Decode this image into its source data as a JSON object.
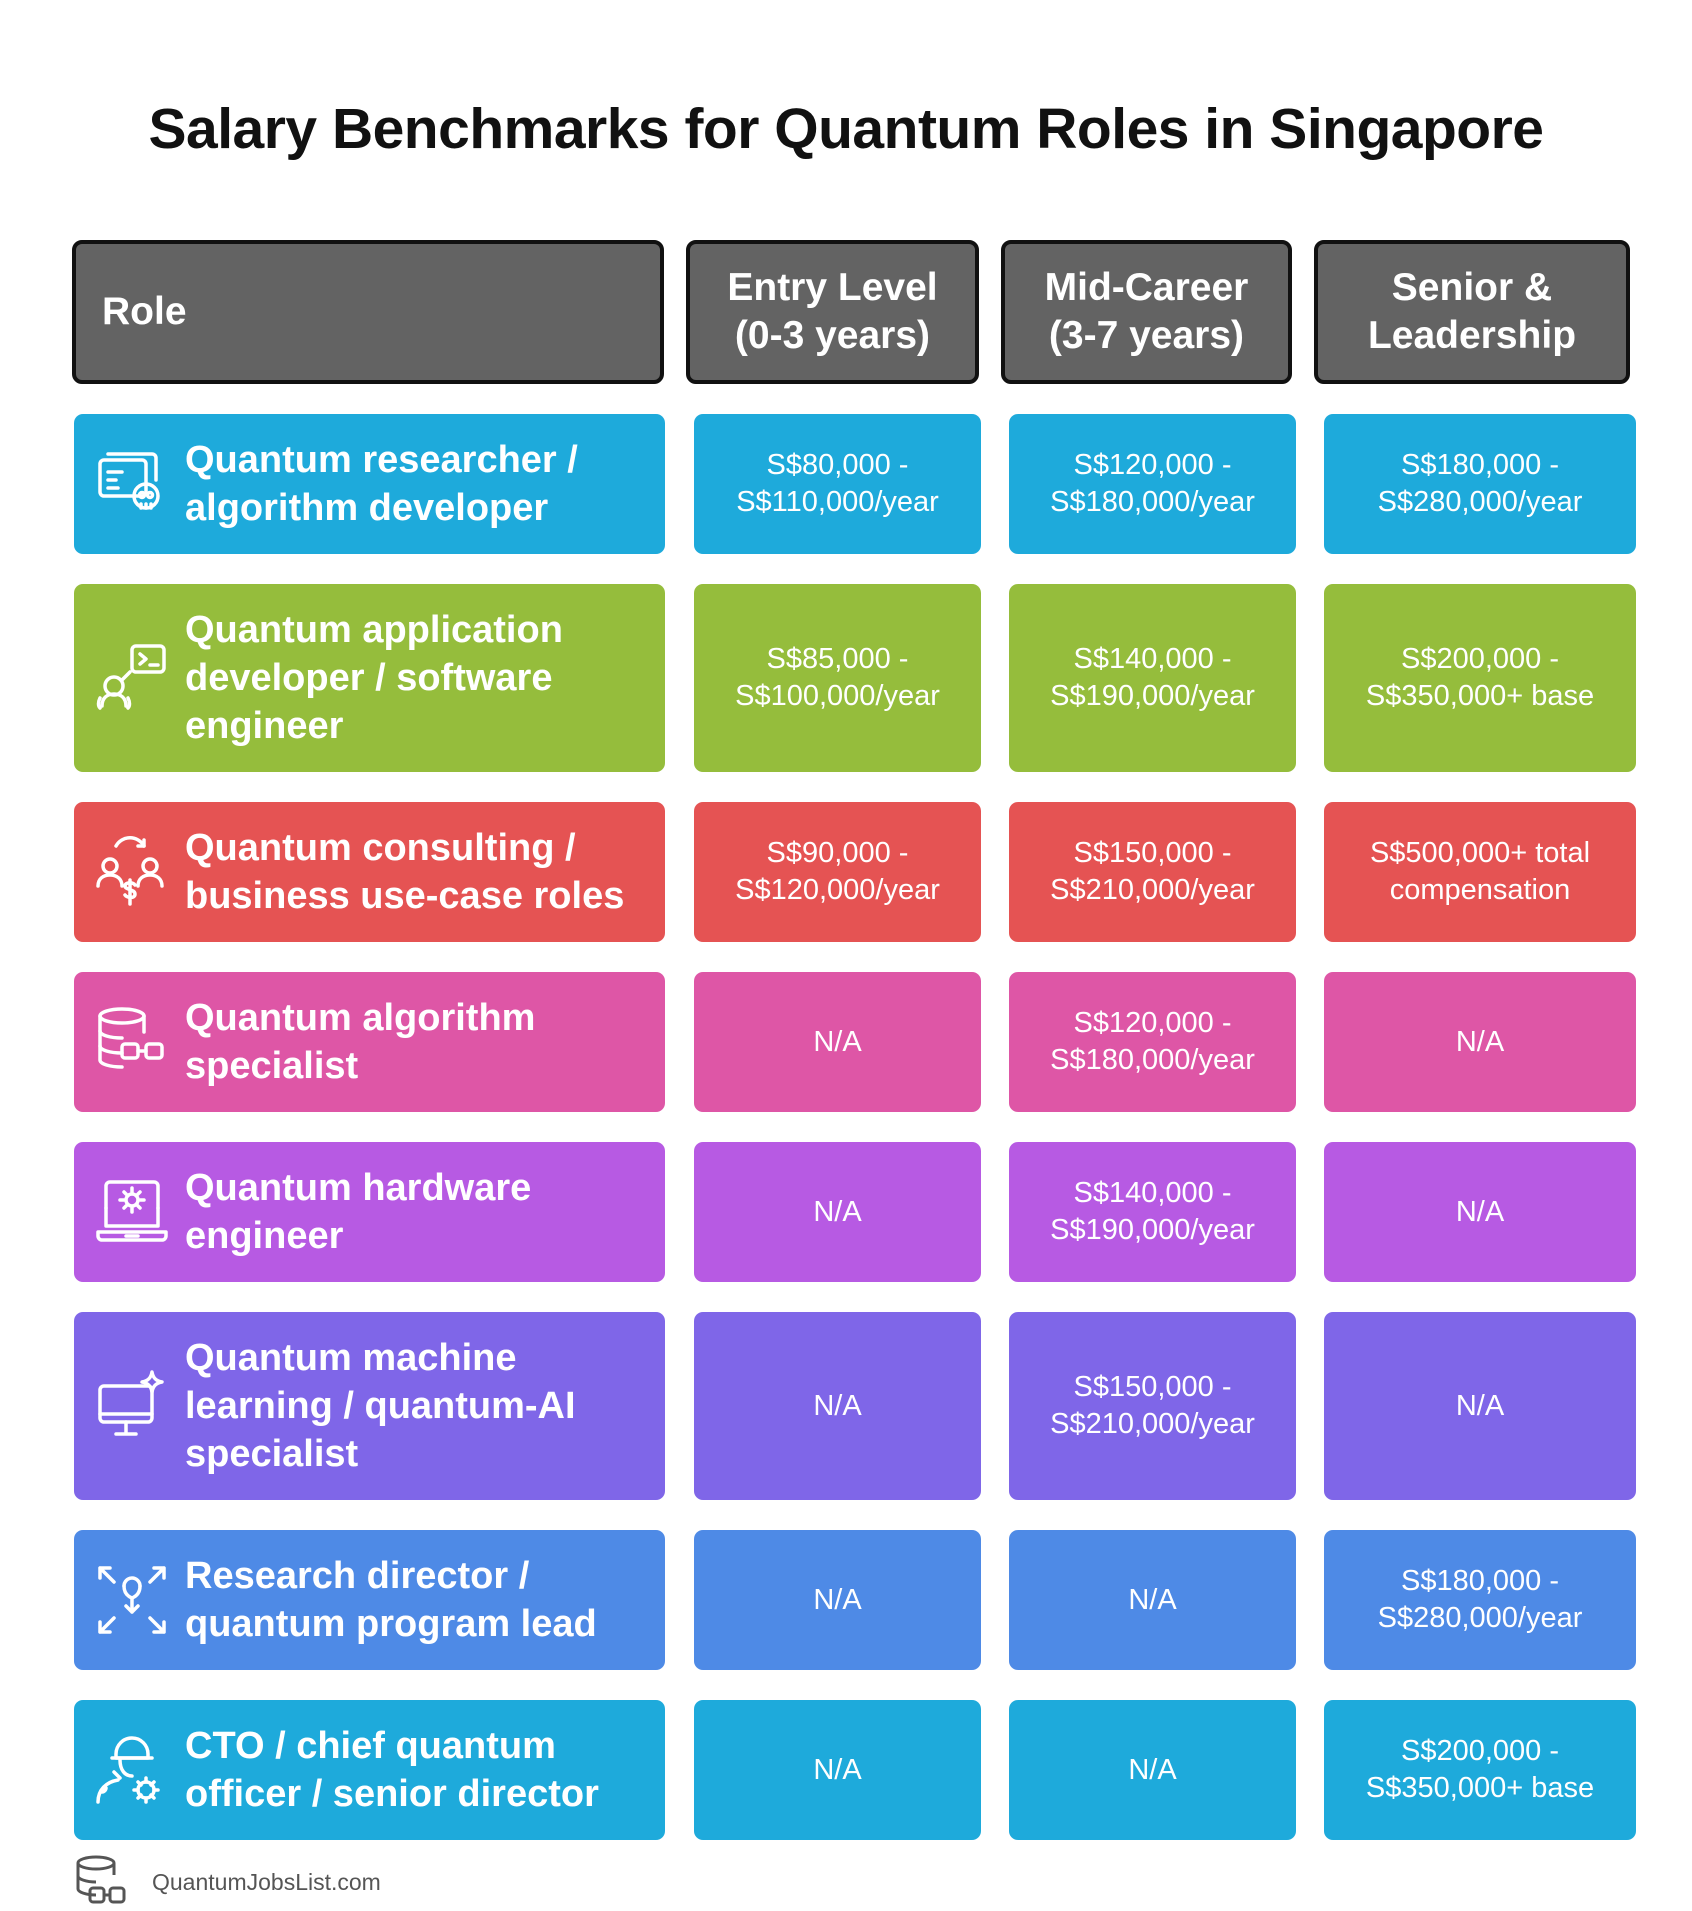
{
  "title": "Salary Benchmarks for Quantum Roles in Singapore",
  "headers": {
    "role": "Role",
    "entry": "Entry Level\n(0-3 years)",
    "mid": "Mid-Career\n(3-7 years)",
    "senior": "Senior &\nLeadership"
  },
  "rows": [
    {
      "role": "Quantum researcher / algorithm developer",
      "icon": "researcher-skull-screen-icon",
      "color": "#1EAADB",
      "entry": "S$80,000 -\nS$110,000/year",
      "mid": "S$120,000 -\nS$180,000/year",
      "senior": "S$180,000 -\nS$280,000/year"
    },
    {
      "role": "Quantum application developer / software engineer",
      "icon": "developer-terminal-icon",
      "color": "#95BD3C",
      "entry": "S$85,000 -\nS$100,000/year",
      "mid": "S$140,000 -\nS$190,000/year",
      "senior": "S$200,000 -\nS$350,000+ base"
    },
    {
      "role": "Quantum consulting / business use-case roles",
      "icon": "consulting-people-icon",
      "color": "#E55353",
      "entry": "S$90,000 -\nS$120,000/year",
      "mid": "S$150,000 -\nS$210,000/year",
      "senior": "S$500,000+ total\ncompensation"
    },
    {
      "role": "Quantum algorithm specialist",
      "icon": "database-glasses-icon",
      "color": "#DE56A6",
      "entry": "N/A",
      "mid": "S$120,000 -\nS$180,000/year",
      "senior": "N/A"
    },
    {
      "role": "Quantum hardware engineer",
      "icon": "laptop-gear-icon",
      "color": "#B75AE3",
      "entry": "N/A",
      "mid": "S$140,000 -\nS$190,000/year",
      "senior": "N/A"
    },
    {
      "role": "Quantum machine learning / quantum-AI specialist",
      "icon": "monitor-sparkle-icon",
      "color": "#7F66E8",
      "entry": "N/A",
      "mid": "S$150,000 -\nS$210,000/year",
      "senior": "N/A"
    },
    {
      "role": "Research director / quantum program lead",
      "icon": "focus-arrows-icon",
      "color": "#4E8AE6",
      "entry": "N/A",
      "mid": "N/A",
      "senior": "S$180,000 -\nS$280,000/year"
    },
    {
      "role": "CTO / chief quantum officer / senior director",
      "icon": "engineer-gear-icon",
      "color": "#1EAADB",
      "entry": "N/A",
      "mid": "N/A",
      "senior": "S$200,000 -\nS$350,000+ base"
    }
  ],
  "footer": {
    "icon": "database-logo-icon",
    "text": "QuantumJobsList.com"
  }
}
